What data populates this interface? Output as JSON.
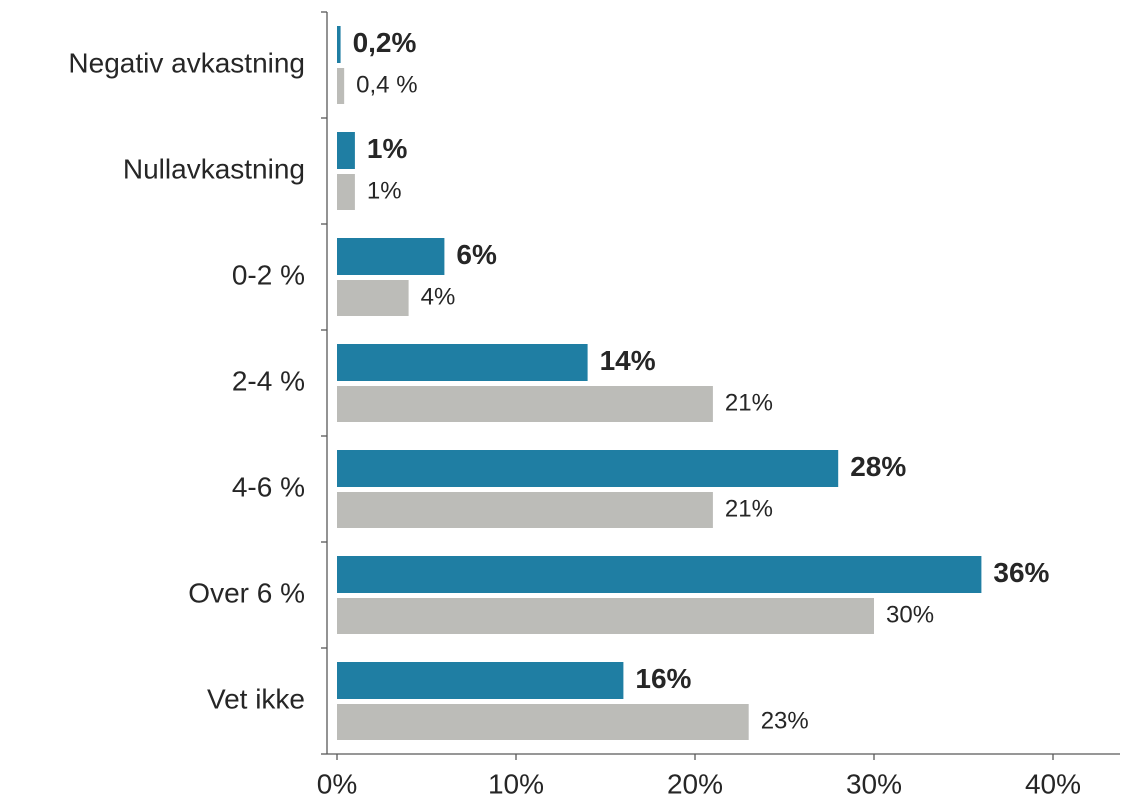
{
  "chart_data": {
    "type": "hbar",
    "categories": [
      "Negativ avkastning",
      "Nullavkastning",
      "0-2 %",
      "2-4 %",
      "4-6 %",
      "Over 6 %",
      "Vet ikke"
    ],
    "series": [
      {
        "color": "#1f7ea3",
        "values": [
          0.2,
          1,
          6,
          14,
          28,
          36,
          16
        ],
        "value_labels": [
          "0,2%",
          "1%",
          "6%",
          "14%",
          "28%",
          "36%",
          "16%"
        ]
      },
      {
        "color": "#bcbcb8",
        "values": [
          0.4,
          1,
          4,
          21,
          21,
          30,
          23
        ],
        "value_labels": [
          "0,4 %",
          "1%",
          "4%",
          "21%",
          "21%",
          "30%",
          "23%"
        ]
      }
    ],
    "xlim": [
      0,
      44
    ],
    "xticks": [
      {
        "value": 0,
        "label": "0%"
      },
      {
        "value": 10,
        "label": "10%"
      },
      {
        "value": 20,
        "label": "20%"
      },
      {
        "value": 30,
        "label": "30%"
      },
      {
        "value": 40,
        "label": "40%"
      }
    ],
    "grid": false
  }
}
